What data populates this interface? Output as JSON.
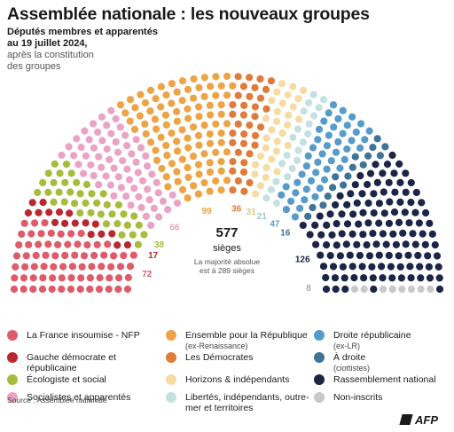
{
  "title": "Assemblée nationale : les nouveaux groupes",
  "subtitle_bold": "Députés membres et apparentés au 19 juillet 2024,",
  "subtitle_light": "après la constitution des groupes",
  "center": {
    "total": "577",
    "unit": "sièges",
    "majority": "La majorité absolue est à 289 sièges"
  },
  "source": "Source : Assemblée nationale",
  "logo_text": "AFP",
  "chart_data": {
    "type": "parliament",
    "total": 577,
    "series": [
      {
        "name": "La France insoumise - NFP",
        "sub": "",
        "value": 72,
        "color": "#de5b6a"
      },
      {
        "name": "Gauche démocrate et républicaine",
        "sub": "",
        "value": 17,
        "color": "#b8282e"
      },
      {
        "name": "Écologiste et social",
        "sub": "",
        "value": 38,
        "color": "#a8bc3c"
      },
      {
        "name": "Socialistes et apparentés",
        "sub": "",
        "value": 66,
        "color": "#eaa3c6"
      },
      {
        "name": "Ensemble pour la République",
        "sub": "(ex-Renaissance)",
        "value": 99,
        "color": "#eda446"
      },
      {
        "name": "Les Démocrates",
        "sub": "",
        "value": 36,
        "color": "#e07b3a"
      },
      {
        "name": "Horizons & indépendants",
        "sub": "",
        "value": 31,
        "color": "#f6dba2"
      },
      {
        "name": "Libertés, indépendants, outre-mer et territoires",
        "sub": "",
        "value": 21,
        "color": "#c4e1e1"
      },
      {
        "name": "Droite républicaine",
        "sub": "(ex-LR)",
        "value": 47,
        "color": "#579bcb"
      },
      {
        "name": "À droite",
        "sub": "(ciottistes)",
        "value": 16,
        "color": "#3e7496"
      },
      {
        "name": "Rassemblement national",
        "sub": "",
        "value": 126,
        "color": "#1c2547"
      },
      {
        "name": "Non-inscrits",
        "sub": "",
        "value": 8,
        "color": "#c8c8c8"
      }
    ]
  }
}
